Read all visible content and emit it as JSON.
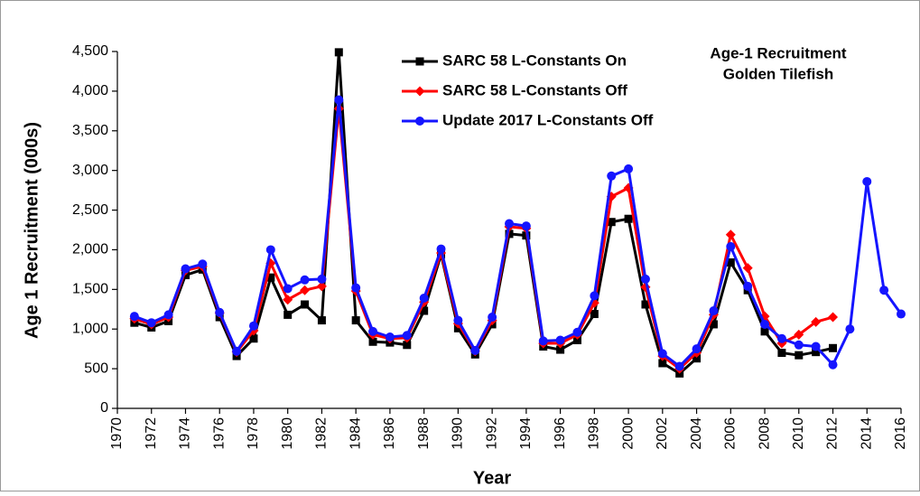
{
  "chart_data": {
    "type": "line",
    "title": "Age-1 Recruitment",
    "subtitle": "Golden Tilefish",
    "x_label": "Year",
    "y_label": "Age 1 Recruitment (000s)",
    "x": [
      1971,
      1972,
      1973,
      1974,
      1975,
      1976,
      1977,
      1978,
      1979,
      1980,
      1981,
      1982,
      1983,
      1984,
      1985,
      1986,
      1987,
      1988,
      1989,
      1990,
      1991,
      1992,
      1993,
      1994,
      1995,
      1996,
      1997,
      1998,
      1999,
      2000,
      2001,
      2002,
      2003,
      2004,
      2005,
      2006,
      2007,
      2008,
      2009,
      2010,
      2011,
      2012,
      2013,
      2014,
      2015,
      2016
    ],
    "series": [
      {
        "name": "SARC 58 L-Constants On",
        "color": "#000000",
        "marker": "square",
        "values": [
          1080,
          1020,
          1100,
          1680,
          1750,
          1150,
          660,
          880,
          1650,
          1180,
          1310,
          1110,
          4490,
          1110,
          840,
          830,
          800,
          1230,
          1940,
          1010,
          680,
          1060,
          2200,
          2180,
          780,
          740,
          860,
          1190,
          2350,
          2390,
          1310,
          570,
          440,
          630,
          1060,
          1840,
          1490,
          970,
          700,
          670,
          710,
          760,
          null,
          null,
          null,
          null
        ]
      },
      {
        "name": "SARC 58 L-Constants Off",
        "color": "#ff0000",
        "marker": "diamond",
        "values": [
          1130,
          1060,
          1150,
          1740,
          1790,
          1200,
          710,
          980,
          1830,
          1370,
          1490,
          1540,
          3780,
          1480,
          930,
          880,
          890,
          1340,
          1960,
          1070,
          720,
          1110,
          2290,
          2270,
          820,
          820,
          930,
          1330,
          2670,
          2780,
          1530,
          660,
          500,
          700,
          1180,
          2190,
          1770,
          1160,
          820,
          930,
          1090,
          1150,
          null,
          null,
          null,
          null
        ]
      },
      {
        "name": "Update 2017 L-Constants Off",
        "color": "#1515ff",
        "marker": "circle",
        "values": [
          1160,
          1080,
          1180,
          1760,
          1820,
          1210,
          720,
          1040,
          2000,
          1510,
          1620,
          1630,
          3890,
          1520,
          970,
          900,
          920,
          1390,
          2010,
          1110,
          730,
          1150,
          2330,
          2300,
          850,
          860,
          960,
          1420,
          2930,
          3020,
          1630,
          690,
          530,
          750,
          1230,
          2040,
          1540,
          1060,
          880,
          800,
          780,
          550,
          1000,
          2860,
          1490,
          1190
        ]
      }
    ],
    "xlim": [
      1970,
      2016
    ],
    "xticks": [
      1970,
      1972,
      1974,
      1976,
      1978,
      1980,
      1982,
      1984,
      1986,
      1988,
      1990,
      1992,
      1994,
      1996,
      1998,
      2000,
      2002,
      2004,
      2006,
      2008,
      2010,
      2012,
      2014,
      2016
    ],
    "ylim": [
      0,
      4500
    ],
    "yticks": [
      0,
      500,
      {
        "value": 1000,
        "label": "1,000"
      },
      {
        "value": 1500,
        "label": "1,500"
      },
      {
        "value": 2000,
        "label": "2,000"
      },
      {
        "value": 2500,
        "label": "2,500"
      },
      {
        "value": 3000,
        "label": "3,000"
      },
      {
        "value": 3500,
        "label": "3,500"
      },
      {
        "value": 4000,
        "label": "4,000"
      },
      {
        "value": 4500,
        "label": "4,500"
      }
    ],
    "legend": "top"
  }
}
